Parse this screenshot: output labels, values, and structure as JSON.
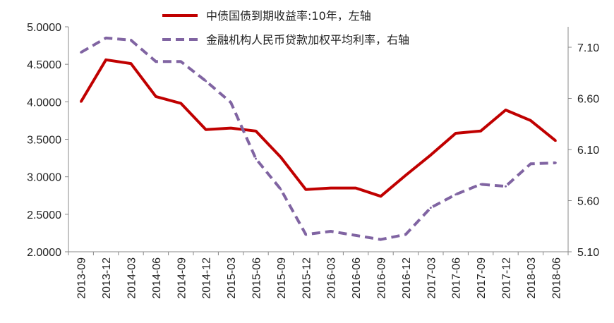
{
  "chart_data": {
    "type": "line",
    "title": "",
    "xlabel": "",
    "categories": [
      "2013-09",
      "2013-12",
      "2014-03",
      "2014-06",
      "2014-09",
      "2014-12",
      "2015-03",
      "2015-06",
      "2015-09",
      "2015-12",
      "2016-03",
      "2016-06",
      "2016-09",
      "2016-12",
      "2017-03",
      "2017-06",
      "2017-09",
      "2017-12",
      "2018-03",
      "2018-06"
    ],
    "y_left": {
      "ylim": [
        2.0,
        5.0
      ],
      "ticks": [
        "2.0000",
        "2.5000",
        "3.0000",
        "3.5000",
        "4.0000",
        "4.5000",
        "5.0000"
      ]
    },
    "y_right": {
      "ylim": [
        5.1,
        7.3
      ],
      "ticks": [
        "5.10",
        "5.60",
        "6.10",
        "6.60",
        "7.10"
      ]
    },
    "legend_position": "top-right",
    "grid": false,
    "series": [
      {
        "name": "中债国债到期收益率:10年，左轴",
        "axis": "left",
        "color": "#c00000",
        "style": "solid",
        "values": [
          4.0,
          4.56,
          4.51,
          4.07,
          3.98,
          3.63,
          3.65,
          3.61,
          3.26,
          2.83,
          2.85,
          2.85,
          2.74,
          3.02,
          3.29,
          3.58,
          3.61,
          3.89,
          3.75,
          3.48
        ]
      },
      {
        "name": "金融机构人民币贷款加权平均利率，右轴",
        "axis": "right",
        "color": "#8064a2",
        "style": "dashed",
        "values": [
          7.05,
          7.19,
          7.17,
          6.96,
          6.96,
          6.77,
          6.56,
          6.01,
          5.71,
          5.27,
          5.3,
          5.26,
          5.22,
          5.27,
          5.53,
          5.66,
          5.76,
          5.74,
          5.96,
          5.97
        ]
      }
    ]
  }
}
